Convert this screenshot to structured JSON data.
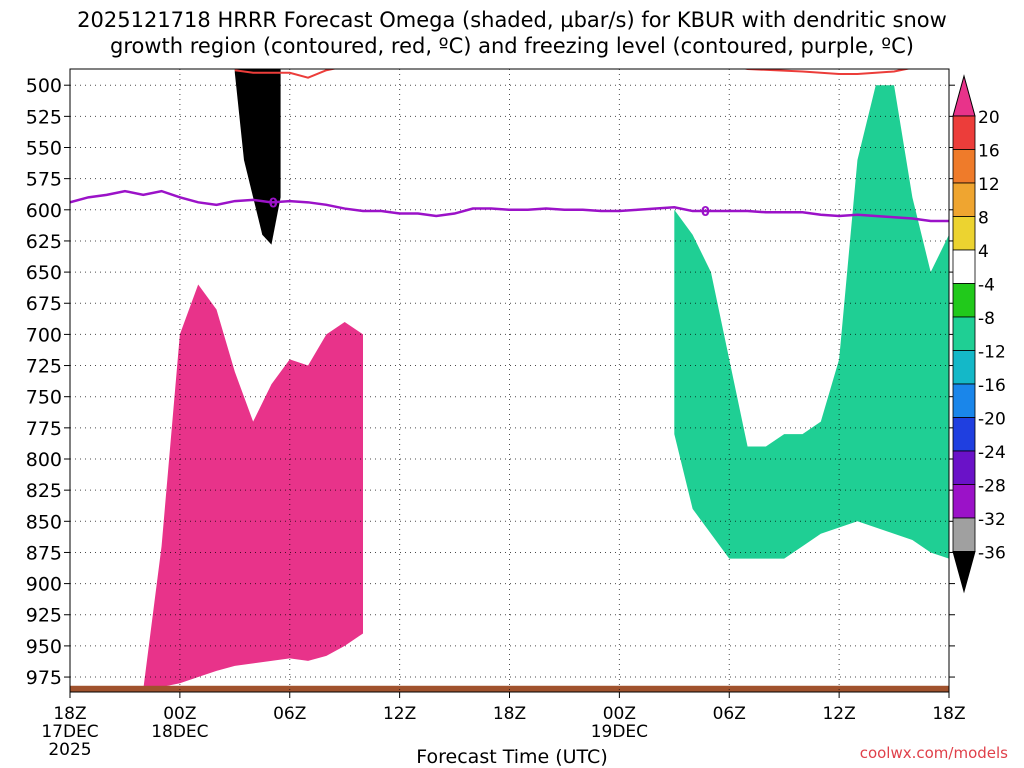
{
  "title": {
    "line1": "2025121718 HRRR Forecast Omega (shaded, µbar/s) for KBUR with dendritic snow",
    "line2": "growth region (contoured, red, ºC) and freezing level (contoured, purple, ºC)"
  },
  "credit": "coolwx.com/models",
  "chart_data": {
    "type": "heatmap",
    "xlabel": "Forecast Time (UTC)",
    "ylabel": "",
    "x_ticks": [
      {
        "label": "18Z",
        "sub1": "17DEC",
        "sub2": "2025",
        "hour": 0
      },
      {
        "label": "00Z",
        "sub1": "18DEC",
        "sub2": "",
        "hour": 6
      },
      {
        "label": "06Z",
        "sub1": "",
        "sub2": "",
        "hour": 12
      },
      {
        "label": "12Z",
        "sub1": "",
        "sub2": "",
        "hour": 18
      },
      {
        "label": "18Z",
        "sub1": "",
        "sub2": "",
        "hour": 24
      },
      {
        "label": "00Z",
        "sub1": "19DEC",
        "sub2": "",
        "hour": 30
      },
      {
        "label": "06Z",
        "sub1": "",
        "sub2": "",
        "hour": 36
      },
      {
        "label": "12Z",
        "sub1": "",
        "sub2": "",
        "hour": 42
      },
      {
        "label": "18Z",
        "sub1": "",
        "sub2": "",
        "hour": 48
      }
    ],
    "xlim": [
      0,
      48
    ],
    "y_ticks": [
      500,
      525,
      550,
      575,
      600,
      625,
      650,
      675,
      700,
      725,
      750,
      775,
      800,
      825,
      850,
      875,
      900,
      925,
      950,
      975
    ],
    "ylim": [
      487,
      987
    ],
    "grid": true,
    "colorbar": {
      "labels": [
        "20",
        "16",
        "12",
        "8",
        "4",
        "-4",
        "-8",
        "-12",
        "-16",
        "-20",
        "-24",
        "-28",
        "-32",
        "-36"
      ],
      "colors": [
        "#e8338a",
        "#ec3d3a",
        "#ef7b2a",
        "#efa530",
        "#ecd330",
        "#ffffff",
        "#21c91b",
        "#1fcf94",
        "#14b8c8",
        "#1a86ea",
        "#1f3fe0",
        "#6a12c8",
        "#9b12c8",
        "#a0a0a0",
        "#000000"
      ]
    },
    "freezing_level": {
      "label": "0",
      "hours": [
        0,
        1,
        2,
        3,
        4,
        5,
        6,
        7,
        8,
        9,
        10,
        11,
        12,
        13,
        14,
        15,
        16,
        17,
        18,
        19,
        20,
        21,
        22,
        23,
        24,
        25,
        26,
        27,
        28,
        29,
        30,
        31,
        32,
        33,
        34,
        35,
        36,
        37,
        38,
        39,
        40,
        41,
        42,
        43,
        44,
        45,
        46,
        47,
        48
      ],
      "pressure": [
        594,
        590,
        588,
        585,
        588,
        585,
        590,
        594,
        596,
        593,
        592,
        594,
        593,
        594,
        596,
        599,
        601,
        601,
        603,
        603,
        605,
        603,
        599,
        599,
        600,
        600,
        599,
        600,
        600,
        601,
        601,
        600,
        599,
        598,
        601,
        601,
        601,
        601,
        602,
        602,
        602,
        604,
        605,
        604,
        605,
        606,
        607,
        609,
        609
      ]
    },
    "dendritic_top": {
      "hours": [
        9,
        10,
        12,
        13,
        14,
        15,
        16,
        24,
        30,
        36,
        37,
        40,
        42,
        43,
        44,
        45,
        46,
        47,
        48
      ],
      "pressure": [
        488,
        490,
        490,
        494,
        488,
        485,
        483,
        484,
        484,
        484,
        487,
        489,
        491,
        491,
        490,
        489,
        486,
        484,
        485
      ]
    },
    "omega_regions": [
      {
        "level": "20",
        "hours": [
          4,
          5,
          6,
          7,
          8,
          9,
          10,
          11,
          12,
          13,
          14,
          15,
          16
        ],
        "p_top": [
          985,
          870,
          700,
          660,
          680,
          730,
          770,
          740,
          720,
          725,
          700,
          690,
          700
        ],
        "p_bottom": [
          985,
          983,
          980,
          975,
          970,
          966,
          964,
          962,
          960,
          962,
          958,
          950,
          940
        ]
      },
      {
        "level": "-36",
        "hours": [
          9,
          9.5,
          10,
          10.5,
          11,
          11.5
        ],
        "p_top": [
          487,
          487,
          487,
          487,
          487,
          487
        ],
        "p_bottom": [
          490,
          560,
          590,
          620,
          628,
          590
        ]
      },
      {
        "level": "-8",
        "hours": [
          33,
          34,
          35,
          36,
          37,
          38,
          39,
          40,
          41,
          42,
          43,
          44,
          45,
          46,
          47,
          48
        ],
        "p_top": [
          600,
          620,
          650,
          720,
          790,
          790,
          780,
          780,
          770,
          720,
          560,
          500,
          500,
          590,
          650,
          620
        ],
        "p_bottom": [
          780,
          840,
          860,
          880,
          880,
          880,
          880,
          870,
          860,
          855,
          850,
          855,
          860,
          865,
          875,
          880
        ]
      }
    ],
    "annotation": "freezing level contour label 0"
  }
}
